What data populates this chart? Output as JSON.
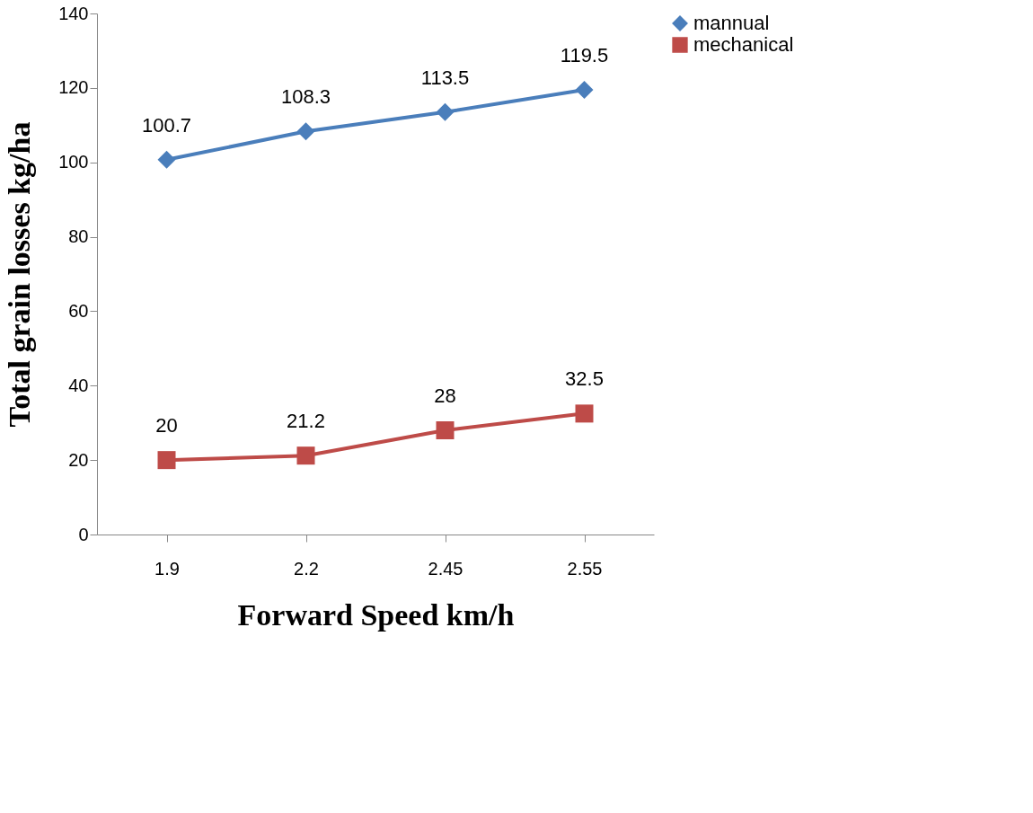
{
  "chart_data": {
    "type": "line",
    "xlabel": "Forward Speed km/h",
    "ylabel": "Total grain losses kg/ha",
    "categories": [
      "1.9",
      "2.2",
      "2.45",
      "2.55"
    ],
    "series": [
      {
        "name": "mannual",
        "color": "#4a7ebb",
        "values": [
          100.7,
          108.3,
          113.5,
          119.5
        ],
        "marker": "diamond"
      },
      {
        "name": "mechanical",
        "color": "#be4b48",
        "values": [
          20,
          21.2,
          28,
          32.5
        ],
        "marker": "square"
      }
    ],
    "ylim": [
      0,
      140
    ],
    "yticks": [
      0,
      20,
      40,
      60,
      80,
      100,
      120,
      140
    ],
    "data_labels": true,
    "legend": "right",
    "grid": false,
    "line_style": "solid"
  }
}
